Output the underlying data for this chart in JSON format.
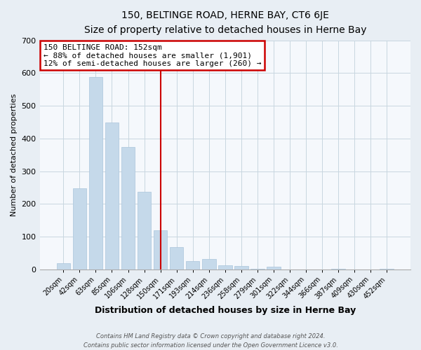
{
  "title": "150, BELTINGE ROAD, HERNE BAY, CT6 6JE",
  "subtitle": "Size of property relative to detached houses in Herne Bay",
  "xlabel": "Distribution of detached houses by size in Herne Bay",
  "ylabel": "Number of detached properties",
  "categories": [
    "20sqm",
    "42sqm",
    "63sqm",
    "85sqm",
    "106sqm",
    "128sqm",
    "150sqm",
    "171sqm",
    "193sqm",
    "214sqm",
    "236sqm",
    "258sqm",
    "279sqm",
    "301sqm",
    "322sqm",
    "344sqm",
    "366sqm",
    "387sqm",
    "409sqm",
    "430sqm",
    "452sqm"
  ],
  "values": [
    18,
    248,
    588,
    449,
    375,
    236,
    120,
    67,
    25,
    31,
    13,
    11,
    1,
    9,
    0,
    0,
    0,
    2,
    0,
    0,
    1
  ],
  "bar_color": "#c5d9ea",
  "bar_edge_color": "#aac5dc",
  "vline_color": "#cc0000",
  "vline_index": 6,
  "annotation_title": "150 BELTINGE ROAD: 152sqm",
  "annotation_line1": "← 88% of detached houses are smaller (1,901)",
  "annotation_line2": "12% of semi-detached houses are larger (260) →",
  "annotation_box_facecolor": "#ffffff",
  "annotation_box_edgecolor": "#cc0000",
  "ylim": [
    0,
    700
  ],
  "yticks": [
    0,
    100,
    200,
    300,
    400,
    500,
    600,
    700
  ],
  "footer1": "Contains HM Land Registry data © Crown copyright and database right 2024.",
  "footer2": "Contains public sector information licensed under the Open Government Licence v3.0.",
  "fig_bg_color": "#e8eef4",
  "plot_bg_color": "#f5f8fc",
  "grid_color": "#c8d6e0",
  "title_fontsize": 10,
  "subtitle_fontsize": 9,
  "xlabel_fontsize": 9,
  "ylabel_fontsize": 8,
  "tick_fontsize": 7,
  "footer_fontsize": 6,
  "annotation_fontsize": 8
}
